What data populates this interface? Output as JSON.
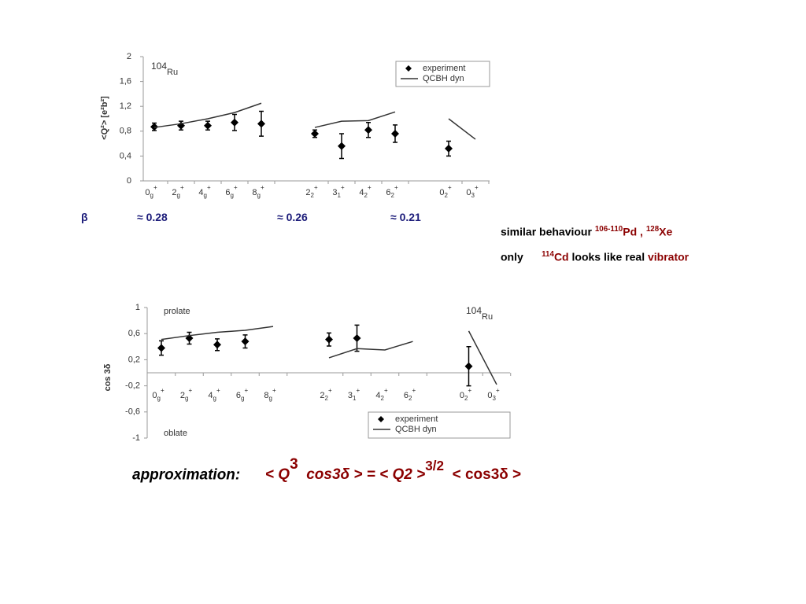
{
  "chart_data": [
    {
      "type": "errorbar-line",
      "title": "Ru",
      "title_superscript": "104",
      "y_label": "<Q²>  [e²b²]",
      "categories": [
        "0",
        "2",
        "4",
        "6",
        "8",
        null,
        "2",
        "3",
        "4",
        "6",
        null,
        "0",
        "0"
      ],
      "category_subscripts": [
        "g",
        "g",
        "g",
        "g",
        "g",
        null,
        "2",
        "1",
        "2",
        "2",
        null,
        "2",
        "3"
      ],
      "category_superscripts": [
        "+",
        "+",
        "+",
        "+",
        "+",
        null,
        "+",
        "+",
        "+",
        "+",
        null,
        "+",
        "+"
      ],
      "ylim": [
        0,
        2
      ],
      "yticks": [
        0,
        {
          "value": 0.4,
          "label": "0,4"
        },
        {
          "value": 0.8,
          "label": "0,8"
        },
        {
          "value": 1.2,
          "label": "1,2"
        },
        {
          "value": 1.6,
          "label": "1,6"
        },
        2
      ],
      "legend": "top-right",
      "series": [
        {
          "name": "experiment",
          "color": "#000000",
          "marker": "diamond",
          "values": [
            0.87,
            0.89,
            0.89,
            0.94,
            0.92,
            null,
            0.76,
            0.56,
            0.82,
            0.76,
            null,
            0.52,
            null
          ],
          "errors": [
            0.06,
            0.07,
            0.07,
            0.13,
            0.2,
            null,
            0.06,
            0.2,
            0.12,
            0.14,
            null,
            0.12,
            null
          ]
        },
        {
          "name": "QCBH dyn",
          "color": "#333333",
          "marker": "line",
          "values": [
            0.86,
            0.92,
            1.0,
            1.1,
            1.25,
            null,
            0.86,
            0.96,
            0.97,
            1.11,
            null,
            1.0,
            0.67
          ]
        }
      ]
    },
    {
      "type": "errorbar-line",
      "title": "Ru",
      "title_superscript": "104",
      "y_label": "cos 3δ",
      "annotations": [
        "prolate",
        "oblate"
      ],
      "categories": [
        "0",
        "2",
        "4",
        "6",
        "8",
        null,
        "2",
        "3",
        "4",
        "6",
        null,
        "0",
        "0"
      ],
      "category_subscripts": [
        "g",
        "g",
        "g",
        "g",
        "g",
        null,
        "2",
        "1",
        "2",
        "2",
        null,
        "2",
        "3"
      ],
      "category_superscripts": [
        "+",
        "+",
        "+",
        "+",
        "+",
        null,
        "+",
        "+",
        "+",
        "+",
        null,
        "+",
        "+"
      ],
      "ylim": [
        -1,
        1
      ],
      "yticks": [
        -1,
        {
          "value": -0.6,
          "label": "-0,6"
        },
        {
          "value": -0.2,
          "label": "-0,2"
        },
        {
          "value": 0.2,
          "label": "0,2"
        },
        {
          "value": 0.6,
          "label": "0,6"
        },
        1
      ],
      "legend": "bottom-right",
      "series": [
        {
          "name": "experiment",
          "color": "#000000",
          "marker": "diamond",
          "values": [
            0.38,
            0.53,
            0.43,
            0.48,
            null,
            null,
            0.51,
            0.53,
            null,
            null,
            null,
            0.1,
            null
          ],
          "errors": [
            0.11,
            0.09,
            0.09,
            0.1,
            null,
            null,
            0.1,
            0.2,
            null,
            null,
            null,
            0.3,
            null
          ]
        },
        {
          "name": "QCBH dyn",
          "color": "#333333",
          "marker": "line",
          "values": [
            0.51,
            0.57,
            0.62,
            0.65,
            0.71,
            null,
            0.23,
            0.37,
            0.35,
            0.48,
            null,
            0.64,
            -0.18
          ]
        }
      ]
    }
  ],
  "slide": {
    "beta": "β",
    "beta_values": [
      "≈ 0.28",
      "≈ 0.26",
      "≈ 0.21"
    ],
    "line1": [
      "similar behaviour",
      "106-110",
      "Pd",
      ",",
      "128",
      "Xe"
    ],
    "line2": [
      "only",
      "114",
      "Cd",
      "looks like real",
      "vibrator"
    ],
    "formula": [
      "approximation:",
      "< Q",
      "3",
      "cos3δ > = < Q2 >",
      "3/2",
      "< cos3δ >"
    ]
  }
}
